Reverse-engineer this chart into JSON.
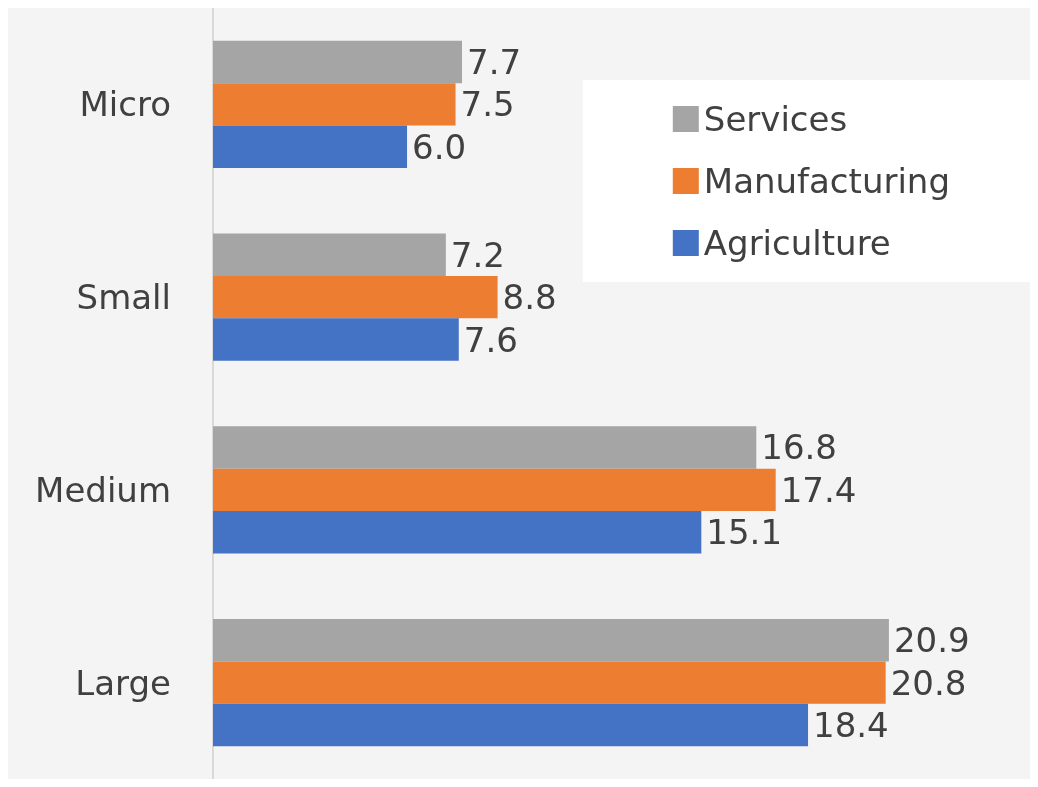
{
  "chart_data": {
    "type": "bar",
    "orientation": "horizontal",
    "tick_labels": "y",
    "categories": [
      "Micro",
      "Small",
      "Medium",
      "Large"
    ],
    "legend": "top right",
    "series": [
      {
        "name": "Services",
        "color": "#a5a5a5",
        "values": [
          7.7,
          7.2,
          16.8,
          20.9
        ],
        "value_labels": [
          "7.7",
          "7.2",
          "16.8",
          "20.9"
        ]
      },
      {
        "name": "Manufacturing",
        "color": "#ed7d31",
        "values": [
          7.5,
          8.8,
          17.4,
          20.8
        ],
        "value_labels": [
          "7.5",
          "8.8",
          "17.4",
          "20.8"
        ]
      },
      {
        "name": "Agriculture",
        "color": "#4472c4",
        "values": [
          6.0,
          7.6,
          15.1,
          18.4
        ],
        "value_labels": [
          "6.0",
          "7.6",
          "15.1",
          "18.4"
        ]
      }
    ]
  }
}
